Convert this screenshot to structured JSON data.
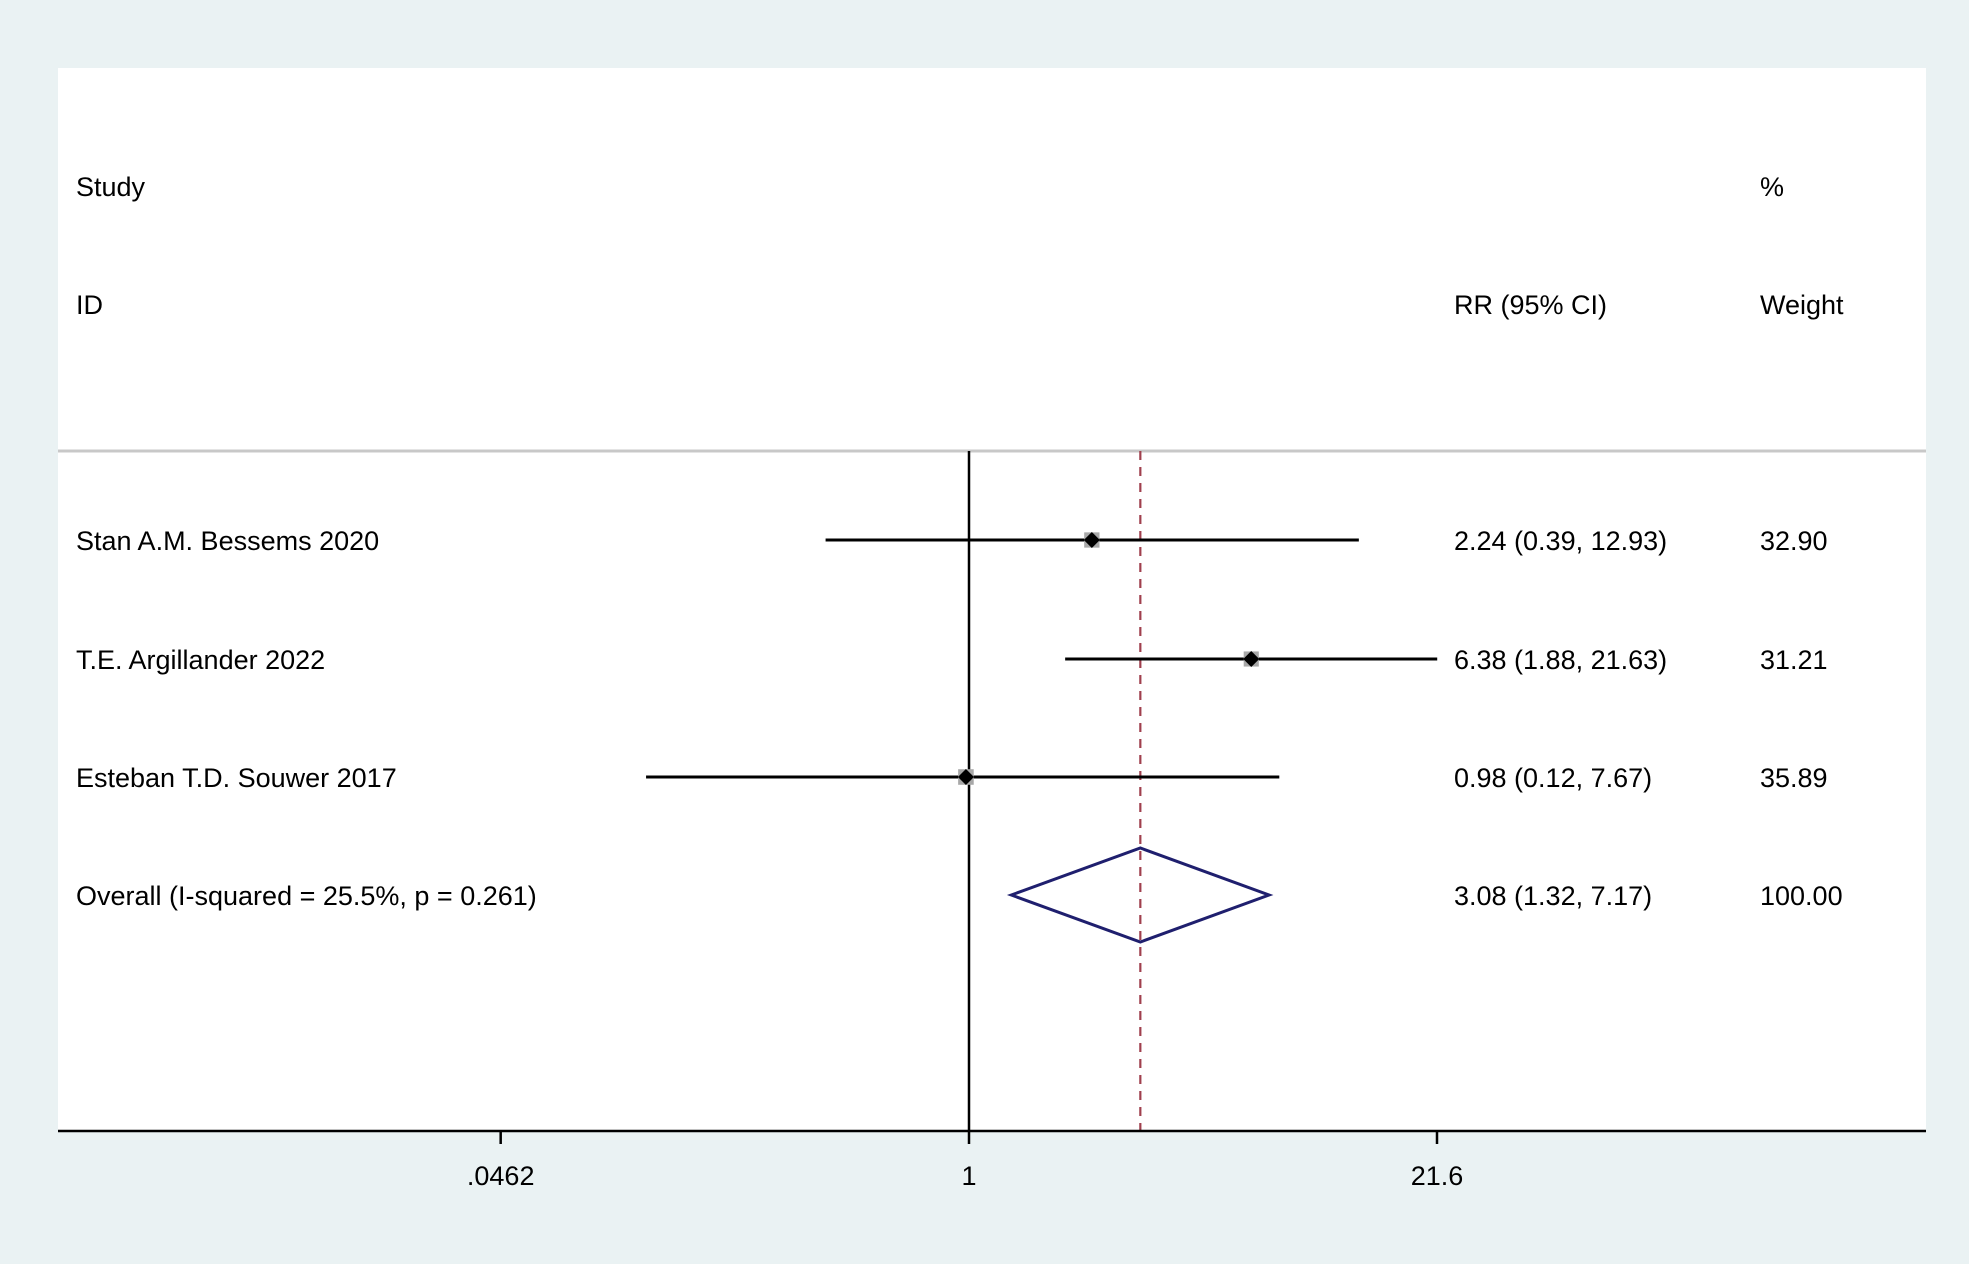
{
  "chart_data": {
    "type": "forest",
    "header": {
      "study_line1": "Study",
      "study_line2": "ID",
      "effect_label": "RR (95% CI)",
      "weight_line1": "%",
      "weight_line2": "Weight"
    },
    "x_scale": "log",
    "x_ticks": [
      {
        "value": 0.0462,
        "label": ".0462"
      },
      {
        "value": 1,
        "label": "1"
      },
      {
        "value": 21.6,
        "label": "21.6"
      }
    ],
    "null_line": 1,
    "studies": [
      {
        "label": "Stan A.M. Bessems 2020",
        "rr": 2.24,
        "lower": 0.39,
        "upper": 12.93,
        "ci_text": "2.24 (0.39, 12.93)",
        "weight": 32.9,
        "weight_text": "32.90"
      },
      {
        "label": "T.E. Argillander 2022",
        "rr": 6.38,
        "lower": 1.88,
        "upper": 21.63,
        "ci_text": "6.38 (1.88, 21.63)",
        "weight": 31.21,
        "weight_text": "31.21"
      },
      {
        "label": "Esteban T.D. Souwer 2017",
        "rr": 0.98,
        "lower": 0.12,
        "upper": 7.67,
        "ci_text": "0.98 (0.12, 7.67)",
        "weight": 35.89,
        "weight_text": "35.89"
      }
    ],
    "overall": {
      "label": "Overall  (I-squared = 25.5%, p = 0.261)",
      "rr": 3.08,
      "lower": 1.32,
      "upper": 7.17,
      "ci_text": "3.08 (1.32, 7.17)",
      "weight_text": "100.00"
    },
    "colors": {
      "background": "#eaf2f3",
      "panel": "#ffffff",
      "axis": "#000000",
      "ci_line": "#000000",
      "marker": "#000000",
      "weight_box": "#a8a8a8",
      "overall_diamond": "#1f1f6e",
      "overall_line": "#a0404e",
      "separator": "#c8c8c8"
    }
  }
}
